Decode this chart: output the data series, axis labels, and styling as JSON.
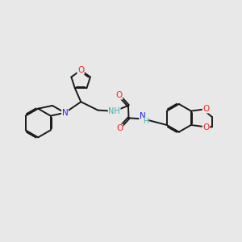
{
  "bg_color": "#e8e8e8",
  "bond_color": "#1a1a1a",
  "N_color": "#2020ff",
  "O_color": "#ff2020",
  "NH_color": "#3cb0b0",
  "bond_width": 1.4,
  "fig_width": 3.0,
  "fig_height": 3.0,
  "dpi": 100,
  "xlim": [
    0,
    12
  ],
  "ylim": [
    0,
    10
  ]
}
